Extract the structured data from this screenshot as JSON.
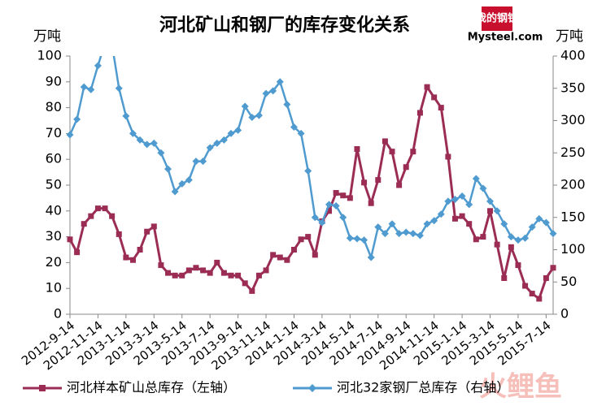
{
  "chart_data": {
    "type": "line",
    "title": "河北矿山和钢厂的库存变化关系",
    "logo": {
      "top": "我的钢铁",
      "bottom": "Mysteel.com"
    },
    "watermark": "火鲤鱼",
    "ylabel": "万吨",
    "y2label": "万吨",
    "categories": [
      "2012-9-14",
      null,
      null,
      null,
      "2012-11-14",
      null,
      null,
      null,
      "2013-1-14",
      null,
      null,
      null,
      "2013-3-14",
      null,
      null,
      null,
      "2013-5-14",
      null,
      null,
      null,
      "2013-7-14",
      null,
      null,
      null,
      "2013-9-14",
      null,
      null,
      null,
      "2013-11-14",
      null,
      null,
      null,
      "2014-1-14",
      null,
      null,
      null,
      "2014-3-14",
      null,
      null,
      null,
      "2014-5-14",
      null,
      null,
      null,
      "2014-7-14",
      null,
      null,
      null,
      "2014-9-14",
      null,
      null,
      null,
      "2014-11-14",
      null,
      null,
      null,
      "2015-1-14",
      null,
      null,
      null,
      "2015-3-14",
      null,
      null,
      null,
      "2015-5-14",
      null,
      null,
      null,
      "2015-7-14",
      null
    ],
    "series": [
      {
        "name": "河北样本矿山总库存（左轴）",
        "color": "#9b2d55",
        "marker": "square",
        "axis": "y",
        "values": [
          29,
          24,
          35,
          38,
          41,
          41,
          38,
          31,
          22,
          21,
          25,
          32,
          34,
          19,
          16,
          15,
          15,
          17,
          18,
          17,
          16,
          20,
          16,
          15,
          15,
          12,
          9,
          15,
          17,
          23,
          22,
          21,
          25,
          29,
          30,
          23,
          36,
          40,
          47,
          46,
          45,
          64,
          51,
          43,
          52,
          67,
          63,
          50,
          57,
          63,
          78,
          88,
          84,
          80,
          61,
          37,
          38,
          35,
          29,
          30,
          40,
          27,
          14,
          26,
          19,
          11,
          8,
          6,
          14,
          18
        ]
      },
      {
        "name": "河北32家钢厂总库存（右轴）",
        "color": "#4f9bd0",
        "marker": "diamond",
        "axis": "y2",
        "values": [
          278,
          302,
          352,
          348,
          385,
          420,
          418,
          350,
          307,
          280,
          270,
          263,
          265,
          250,
          225,
          190,
          202,
          208,
          237,
          237,
          258,
          265,
          270,
          280,
          285,
          322,
          305,
          308,
          342,
          346,
          360,
          325,
          290,
          280,
          222,
          150,
          142,
          170,
          168,
          150,
          118,
          117,
          115,
          88,
          135,
          125,
          140,
          125,
          127,
          125,
          122,
          140,
          145,
          155,
          175,
          178,
          183,
          170,
          210,
          195,
          175,
          160,
          140,
          120,
          115,
          118,
          135,
          148,
          142,
          125
        ]
      }
    ],
    "ylim": [
      0,
      100
    ],
    "yticks": [
      0,
      10,
      20,
      30,
      40,
      50,
      60,
      70,
      80,
      90,
      100
    ],
    "y2lim": [
      0,
      400
    ],
    "y2ticks": [
      0,
      50,
      100,
      150,
      200,
      250,
      300,
      350,
      400
    ],
    "grid": false,
    "legend": "bottom"
  }
}
